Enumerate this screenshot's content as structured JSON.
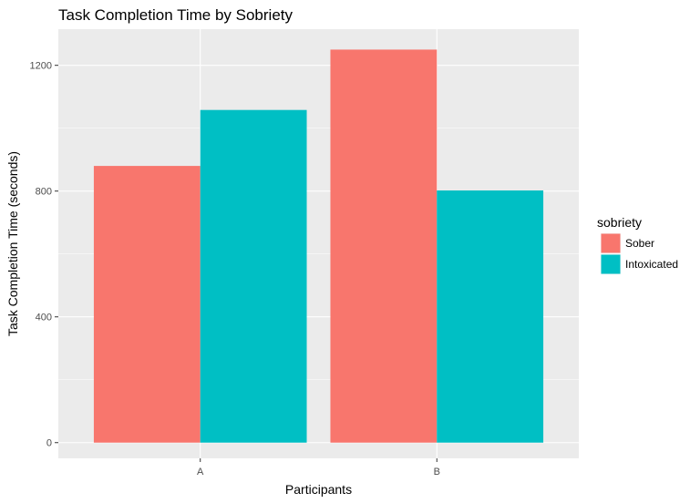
{
  "chart_data": {
    "type": "bar",
    "title": "Task Completion Time by Sobriety",
    "xlabel": "Participants",
    "ylabel": "Task Completion Time (seconds)",
    "categories": [
      "A",
      "B"
    ],
    "series": [
      {
        "name": "Sober",
        "color": "#F8766D",
        "values": [
          880,
          1250
        ]
      },
      {
        "name": "Intoxicated",
        "color": "#00BFC4",
        "values": [
          1058,
          802
        ]
      }
    ],
    "ylim": [
      -50,
      1315
    ],
    "yticks": [
      0,
      400,
      800,
      1200
    ],
    "grid": true,
    "panel_background": "#EBEBEB",
    "legend_title": "sobriety",
    "legend_position": "right"
  }
}
